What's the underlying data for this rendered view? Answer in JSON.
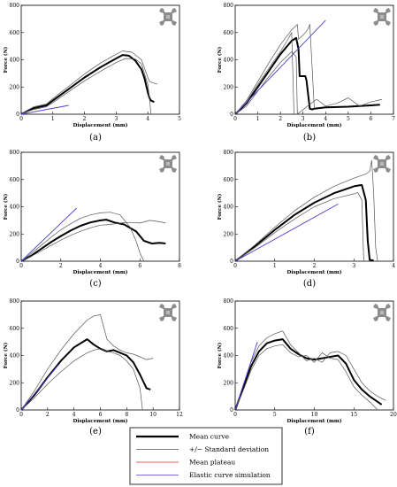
{
  "colors": {
    "mean": "#000000",
    "std": "#555555",
    "plateau": "#e0261c",
    "elastic": "#4b3fd1",
    "icon": "#8c8c8c"
  },
  "legend": {
    "items": [
      {
        "label": "Mean curve",
        "color": "#000000",
        "width": 2.2
      },
      {
        "label": "+/− Standard deviation",
        "color": "#555555",
        "width": 0.8
      },
      {
        "label": "Mean plateau",
        "color": "#e0261c",
        "width": 0.8
      },
      {
        "label": "Elastic curve simulation",
        "color": "#4b3fd1",
        "width": 0.8
      }
    ]
  },
  "chart_data": [
    {
      "type": "line",
      "caption": "(a)",
      "icon": "lattice-cell-icon",
      "xlabel": "Displacement (mm)",
      "ylabel": "Force (N)",
      "xlim": [
        0,
        5
      ],
      "ylim": [
        0,
        800
      ],
      "xticks": [
        0,
        1,
        2,
        3,
        4,
        5
      ],
      "yticks": [
        0,
        200,
        400,
        600,
        800
      ],
      "series": [
        {
          "role": "mean",
          "x": [
            0,
            0.2,
            0.4,
            0.6,
            0.8,
            1,
            1.5,
            2,
            2.5,
            3,
            3.2,
            3.4,
            3.6,
            3.8,
            3.9,
            4.0,
            4.05,
            4.1,
            4.2
          ],
          "y": [
            0,
            25,
            45,
            55,
            65,
            100,
            185,
            270,
            345,
            410,
            435,
            430,
            395,
            330,
            260,
            160,
            120,
            100,
            90
          ]
        },
        {
          "role": "std",
          "x": [
            0,
            0.2,
            0.4,
            0.6,
            0.8,
            1,
            1.5,
            2,
            2.5,
            3,
            3.2,
            3.5,
            3.8,
            4.0,
            4.05,
            4.3
          ],
          "y": [
            0,
            30,
            55,
            65,
            75,
            115,
            205,
            295,
            375,
            440,
            465,
            455,
            400,
            270,
            240,
            220
          ]
        },
        {
          "role": "std",
          "x": [
            0,
            0.2,
            0.4,
            0.6,
            0.8,
            1,
            1.5,
            2,
            2.5,
            3,
            3.3,
            3.6,
            3.8,
            4.0,
            4.05,
            4.1
          ],
          "y": [
            0,
            20,
            35,
            45,
            55,
            85,
            165,
            245,
            315,
            380,
            410,
            405,
            370,
            220,
            120,
            0
          ]
        },
        {
          "role": "elastic",
          "x": [
            0,
            1.5
          ],
          "y": [
            0,
            65
          ]
        }
      ]
    },
    {
      "type": "line",
      "caption": "(b)",
      "icon": "lattice-cell-icon",
      "xlabel": "Displacement (mm)",
      "ylabel": "Force (N)",
      "xlim": [
        0,
        7
      ],
      "ylim": [
        0,
        800
      ],
      "xticks": [
        0,
        1,
        2,
        3,
        4,
        5,
        6,
        7
      ],
      "yticks": [
        0,
        200,
        400,
        600,
        800
      ],
      "series": [
        {
          "role": "mean",
          "x": [
            0,
            0.5,
            1,
            1.5,
            2,
            2.5,
            2.7,
            2.8,
            2.85,
            3.1,
            3.15,
            3.3,
            3.4,
            3.5,
            4,
            5,
            6,
            6.4
          ],
          "y": [
            0,
            80,
            200,
            320,
            440,
            540,
            560,
            480,
            280,
            280,
            250,
            40,
            35,
            40,
            50,
            55,
            65,
            70
          ]
        },
        {
          "role": "std",
          "x": [
            0,
            0.5,
            1,
            1.5,
            2,
            2.5,
            2.75,
            2.8,
            3.0,
            3.2,
            3.3,
            3.5
          ],
          "y": [
            0,
            100,
            240,
            380,
            510,
            620,
            660,
            550,
            580,
            620,
            660,
            40
          ]
        },
        {
          "role": "std",
          "x": [
            0,
            0.5,
            1,
            1.5,
            2,
            2.5,
            2.7,
            2.75,
            3.2,
            3.6,
            4.0,
            4.5,
            5,
            5.5,
            6,
            6.5
          ],
          "y": [
            0,
            60,
            170,
            280,
            380,
            460,
            420,
            0,
            60,
            110,
            60,
            80,
            120,
            60,
            90,
            110
          ]
        },
        {
          "role": "std",
          "x": [
            0,
            0.5,
            1,
            1.5,
            2,
            2.3,
            2.5,
            2.6
          ],
          "y": [
            0,
            90,
            220,
            340,
            460,
            540,
            600,
            0
          ]
        },
        {
          "role": "elastic",
          "x": [
            0,
            4
          ],
          "y": [
            0,
            690
          ]
        }
      ]
    },
    {
      "type": "line",
      "caption": "(c)",
      "icon": "lattice-cell-icon",
      "xlabel": "Displacement (mm)",
      "ylabel": "Force (N)",
      "xlim": [
        0,
        8
      ],
      "ylim": [
        0,
        800
      ],
      "xticks": [
        0,
        2,
        4,
        6,
        8
      ],
      "yticks": [
        0,
        200,
        400,
        600,
        800
      ],
      "series": [
        {
          "role": "mean",
          "x": [
            0,
            0.5,
            1,
            1.5,
            2,
            2.5,
            3,
            3.5,
            4,
            4.3,
            4.7,
            5.2,
            5.8,
            6.2,
            6.6,
            7,
            7.3
          ],
          "y": [
            0,
            40,
            90,
            140,
            185,
            225,
            260,
            285,
            300,
            305,
            285,
            270,
            220,
            150,
            130,
            135,
            130
          ]
        },
        {
          "role": "std",
          "x": [
            0,
            0.5,
            1,
            1.5,
            2,
            2.5,
            3,
            3.5,
            4,
            4.5,
            5,
            5.5,
            5.8,
            6.0,
            6.2
          ],
          "y": [
            0,
            55,
            115,
            175,
            230,
            275,
            315,
            340,
            355,
            360,
            340,
            250,
            150,
            60,
            0
          ]
        },
        {
          "role": "std",
          "x": [
            0,
            0.5,
            1,
            1.5,
            2,
            2.5,
            3,
            3.5,
            4,
            4.5,
            5,
            5.5,
            6,
            6.5,
            7,
            7.3
          ],
          "y": [
            0,
            35,
            75,
            115,
            155,
            190,
            220,
            245,
            265,
            270,
            280,
            285,
            280,
            300,
            290,
            280
          ]
        },
        {
          "role": "elastic",
          "x": [
            0,
            2.8
          ],
          "y": [
            0,
            390
          ]
        }
      ]
    },
    {
      "type": "line",
      "caption": "(d)",
      "icon": "lattice-cell-icon",
      "xlabel": "Displacement (mm)",
      "ylabel": "Force (N)",
      "xlim": [
        0,
        4
      ],
      "ylim": [
        0,
        800
      ],
      "xticks": [
        0,
        1,
        2,
        3,
        4
      ],
      "yticks": [
        0,
        200,
        400,
        600,
        800
      ],
      "series": [
        {
          "role": "mean",
          "x": [
            0,
            0.5,
            1,
            1.5,
            2,
            2.5,
            3,
            3.2,
            3.3,
            3.35,
            3.4,
            3.5
          ],
          "y": [
            0,
            110,
            230,
            340,
            430,
            500,
            550,
            560,
            450,
            150,
            10,
            5
          ]
        },
        {
          "role": "std",
          "x": [
            0,
            0.5,
            1,
            1.5,
            2,
            2.5,
            3,
            3.3,
            3.4,
            3.45,
            3.5,
            3.55,
            3.6
          ],
          "y": [
            0,
            120,
            250,
            370,
            470,
            550,
            610,
            640,
            660,
            740,
            500,
            100,
            0
          ]
        },
        {
          "role": "std",
          "x": [
            0,
            0.5,
            1,
            1.5,
            2,
            2.5,
            3,
            3.1,
            3.2,
            3.25
          ],
          "y": [
            0,
            100,
            210,
            310,
            400,
            460,
            495,
            505,
            450,
            0
          ]
        },
        {
          "role": "elastic",
          "x": [
            0,
            2.6
          ],
          "y": [
            0,
            420
          ]
        }
      ]
    },
    {
      "type": "line",
      "caption": "(e)",
      "icon": "lattice-cell-icon",
      "xlabel": "Displacement (mm)",
      "ylabel": "Force (N)",
      "xlim": [
        0,
        12
      ],
      "ylim": [
        0,
        800
      ],
      "xticks": [
        0,
        2,
        4,
        6,
        8,
        10,
        12
      ],
      "yticks": [
        0,
        200,
        400,
        600,
        800
      ],
      "series": [
        {
          "role": "mean",
          "x": [
            0,
            1,
            2,
            3,
            4,
            5,
            5.5,
            6,
            6.5,
            7,
            7.5,
            8,
            8.5,
            9,
            9.5,
            9.8
          ],
          "y": [
            0,
            110,
            240,
            360,
            460,
            520,
            480,
            450,
            430,
            440,
            420,
            400,
            350,
            260,
            160,
            150
          ]
        },
        {
          "role": "std",
          "x": [
            0,
            1,
            2,
            3,
            4,
            5,
            5.5,
            6,
            6.5,
            7,
            7.5,
            8,
            8.5,
            9,
            9.5,
            10
          ],
          "y": [
            0,
            140,
            300,
            440,
            560,
            660,
            690,
            700,
            520,
            470,
            440,
            420,
            410,
            390,
            370,
            380
          ]
        },
        {
          "role": "std",
          "x": [
            0,
            1,
            2,
            3,
            4,
            5,
            5.5,
            6,
            6.5,
            7,
            7.5,
            8,
            8.5,
            9,
            9.2
          ],
          "y": [
            0,
            90,
            190,
            280,
            360,
            420,
            440,
            450,
            430,
            420,
            400,
            360,
            300,
            160,
            0
          ]
        },
        {
          "role": "elastic",
          "x": [
            0,
            2.8
          ],
          "y": [
            0,
            330
          ]
        }
      ]
    },
    {
      "type": "line",
      "caption": "(f)",
      "icon": "lattice-cell-icon",
      "xlabel": "Displacement (mm)",
      "ylabel": "Force (N)",
      "xlim": [
        0,
        20
      ],
      "ylim": [
        0,
        800
      ],
      "xticks": [
        0,
        5,
        10,
        15,
        20
      ],
      "yticks": [
        0,
        200,
        400,
        600,
        800
      ],
      "series": [
        {
          "role": "mean",
          "x": [
            0,
            1,
            2,
            3,
            4,
            5,
            6,
            7,
            8,
            9,
            10,
            11,
            12,
            13,
            14,
            15,
            16,
            17,
            18,
            18.5
          ],
          "y": [
            0,
            160,
            320,
            430,
            490,
            510,
            520,
            450,
            410,
            380,
            370,
            380,
            390,
            400,
            340,
            220,
            150,
            100,
            60,
            40
          ]
        },
        {
          "role": "std",
          "x": [
            0,
            1,
            2,
            3,
            4,
            5,
            6,
            7,
            8,
            9,
            10,
            11,
            12,
            13,
            14,
            15,
            16,
            17,
            18,
            19
          ],
          "y": [
            0,
            180,
            350,
            470,
            530,
            560,
            580,
            480,
            420,
            360,
            380,
            350,
            420,
            430,
            400,
            300,
            200,
            140,
            100,
            70
          ]
        },
        {
          "role": "std",
          "x": [
            0,
            1,
            2,
            3,
            4,
            5,
            6,
            7,
            8,
            9,
            10,
            11,
            12,
            13,
            14,
            15,
            16,
            17,
            18
          ],
          "y": [
            0,
            140,
            290,
            400,
            450,
            470,
            480,
            420,
            390,
            400,
            350,
            420,
            380,
            370,
            280,
            170,
            110,
            60,
            0
          ]
        },
        {
          "role": "elastic",
          "x": [
            0,
            2.8
          ],
          "y": [
            0,
            500
          ]
        }
      ]
    }
  ]
}
